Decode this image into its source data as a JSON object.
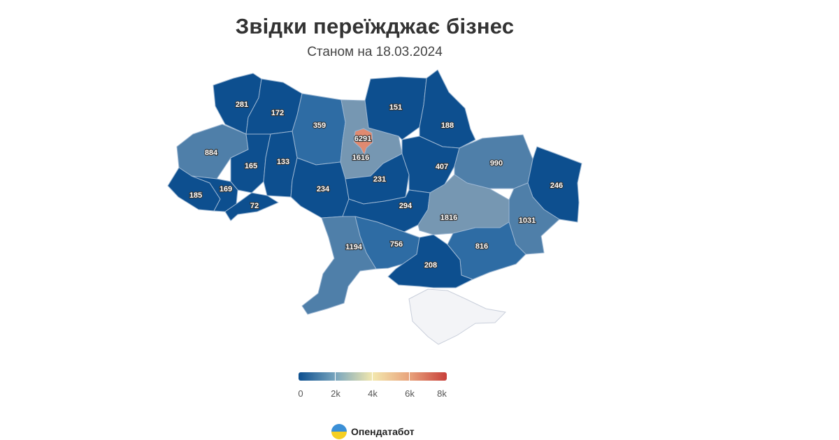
{
  "title": "Звідки переїжджає бізнес",
  "subtitle": "Станом на 18.03.2024",
  "brand": {
    "name": "Опендатабот",
    "logo_icon": "opendatabot-logo-icon"
  },
  "colors": {
    "dark_blue": "#0d4f8f",
    "mid_blue": "#2e6ca4",
    "steel_blue": "#4f7fa9",
    "grey_blue": "#7697b2",
    "orange": "#e08a70",
    "crimea": "#f3f4f7",
    "legend_gradient": [
      "#0d4f8f",
      "#79a6be",
      "#f3e8ae",
      "#e8a27b",
      "#c8403a"
    ]
  },
  "legend": {
    "ticks": [
      "0",
      "2k",
      "4k",
      "6k",
      "8k"
    ],
    "min": 0,
    "max": 8000
  },
  "regions": [
    {
      "name": "Volyn",
      "value": "281"
    },
    {
      "name": "Rivne",
      "value": "172"
    },
    {
      "name": "Zhytomyr",
      "value": "359"
    },
    {
      "name": "Kyiv city",
      "value": "6291"
    },
    {
      "name": "Kyiv region",
      "value": "1616"
    },
    {
      "name": "Chernihiv",
      "value": "151"
    },
    {
      "name": "Sumy",
      "value": "188"
    },
    {
      "name": "Lviv",
      "value": "884"
    },
    {
      "name": "Ternopil",
      "value": "165"
    },
    {
      "name": "Khmelnytskyi",
      "value": "133"
    },
    {
      "name": "Poltava",
      "value": "407"
    },
    {
      "name": "Kharkiv",
      "value": "990"
    },
    {
      "name": "Luhansk",
      "value": "246"
    },
    {
      "name": "Zakarpattia",
      "value": "185"
    },
    {
      "name": "Ivano-Frankivsk",
      "value": "169"
    },
    {
      "name": "Chernivtsi",
      "value": "72"
    },
    {
      "name": "Vinnytsia",
      "value": "234"
    },
    {
      "name": "Cherkasy",
      "value": "231"
    },
    {
      "name": "Kirovohrad",
      "value": "294"
    },
    {
      "name": "Dnipropetrovsk",
      "value": "1816"
    },
    {
      "name": "Donetsk",
      "value": "1031"
    },
    {
      "name": "Odesa",
      "value": "1194"
    },
    {
      "name": "Mykolaiv",
      "value": "756"
    },
    {
      "name": "Zaporizhzhia",
      "value": "816"
    },
    {
      "name": "Kherson",
      "value": "208"
    }
  ]
}
